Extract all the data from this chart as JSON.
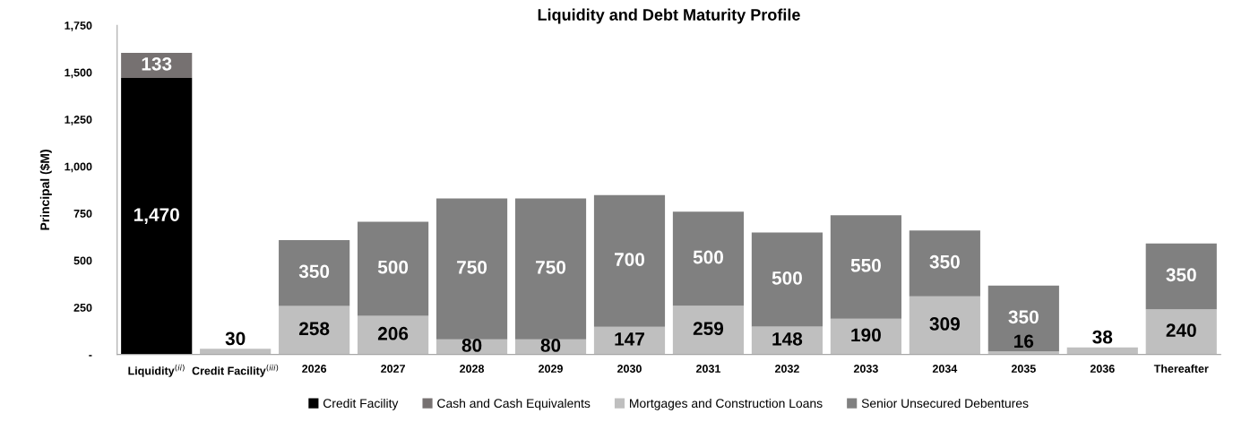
{
  "chart_data": {
    "type": "bar",
    "title": "Liquidity and Debt Maturity Profile",
    "ylabel": "Principal ($M)",
    "categories": [
      "Liquidity$^{(ii)}$",
      "Credit Facility$^{(iii)}$",
      "2026",
      "2027",
      "2028",
      "2029",
      "2030",
      "2031",
      "2032",
      "2033",
      "2034",
      "2035",
      "2036",
      "Thereafter"
    ],
    "stacked": true,
    "legend": "bottom",
    "grid": false,
    "ylim": [
      0,
      1750
    ],
    "yticks": [
      {
        "value": 0,
        "label": "-"
      },
      {
        "value": 250,
        "label": "250"
      },
      {
        "value": 500,
        "label": "500"
      },
      {
        "value": 750,
        "label": "750"
      },
      {
        "value": 1000,
        "label": "1,000"
      },
      {
        "value": 1250,
        "label": "1,250"
      },
      {
        "value": 1500,
        "label": "1,500"
      },
      {
        "value": 1750,
        "label": "1,750"
      }
    ],
    "series": [
      {
        "name": "Credit Facility",
        "color": "#000000",
        "values": [
          1470,
          null,
          null,
          null,
          null,
          null,
          null,
          null,
          null,
          null,
          null,
          null,
          null,
          null
        ],
        "value_labels": [
          "1,470",
          null,
          null,
          null,
          null,
          null,
          null,
          null,
          null,
          null,
          null,
          null,
          null,
          null
        ]
      },
      {
        "name": "Cash and Cash Equivalents",
        "color": "#767171",
        "values": [
          133,
          null,
          null,
          null,
          null,
          null,
          null,
          null,
          null,
          null,
          null,
          null,
          null,
          null
        ],
        "value_labels": [
          "133",
          null,
          null,
          null,
          null,
          null,
          null,
          null,
          null,
          null,
          null,
          null,
          null,
          null
        ]
      },
      {
        "name": "Mortgages and Construction Loans",
        "color": "#bfbfbf",
        "values": [
          null,
          30,
          258,
          206,
          80,
          80,
          147,
          259,
          148,
          190,
          309,
          16,
          38,
          240
        ],
        "value_labels": [
          null,
          "30",
          "258",
          "206",
          "80",
          "80",
          "147",
          "259",
          "148",
          "190",
          "309",
          "16",
          "38",
          "240"
        ]
      },
      {
        "name": "Senior Unsecured Debentures",
        "color": "#808080",
        "values": [
          null,
          null,
          350,
          500,
          750,
          750,
          700,
          500,
          500,
          550,
          350,
          350,
          null,
          350
        ],
        "value_labels": [
          null,
          null,
          "350",
          "500",
          "750",
          "750",
          "700",
          "500",
          "500",
          "550",
          "350",
          "350",
          null,
          "350"
        ]
      }
    ]
  }
}
